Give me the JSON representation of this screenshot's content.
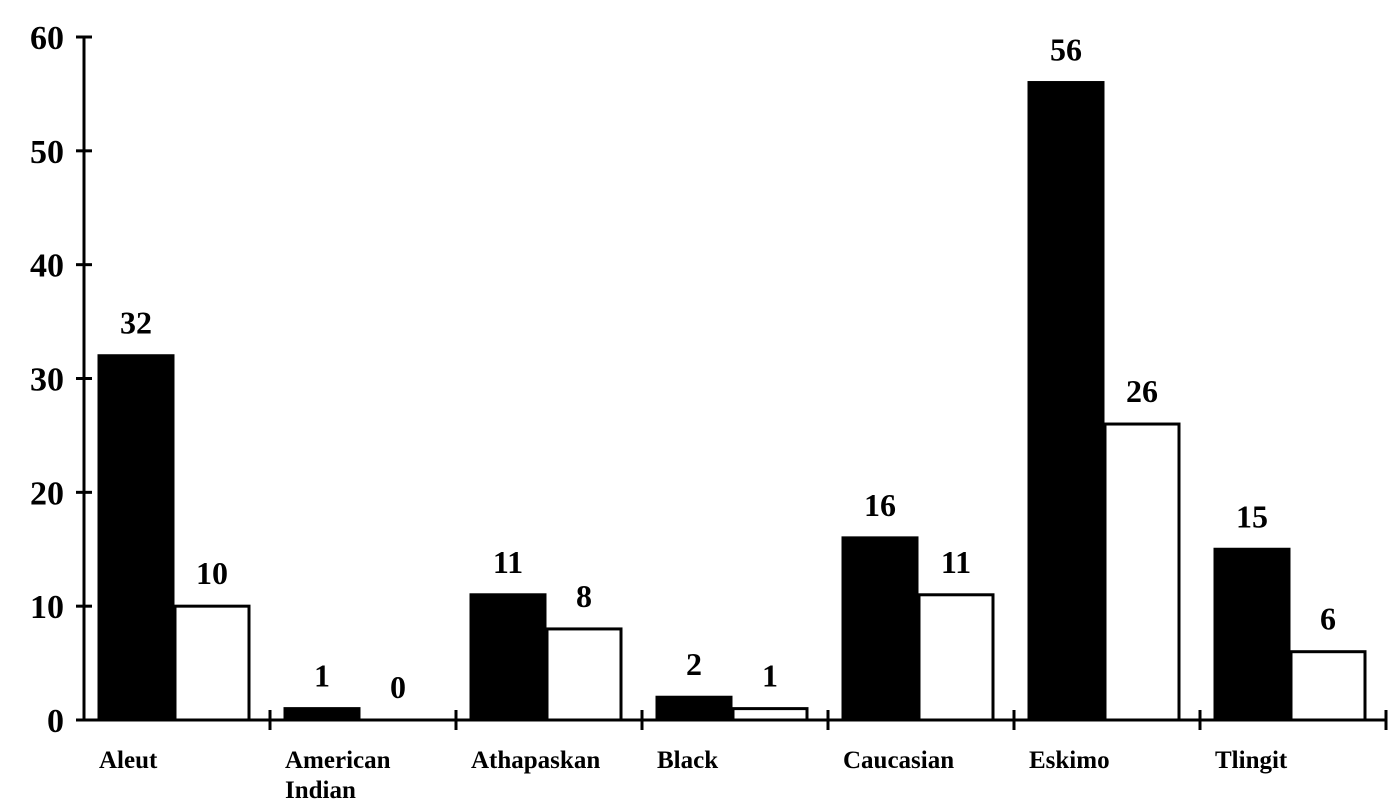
{
  "chart_data": {
    "type": "bar",
    "title": "",
    "xlabel": "",
    "ylabel": "",
    "ylim": [
      0,
      60
    ],
    "yticks": [
      0,
      10,
      20,
      30,
      40,
      50,
      60
    ],
    "grid": false,
    "legend": "none",
    "categories": [
      [
        "Aleut"
      ],
      [
        "American",
        "Indian"
      ],
      [
        "Athapaskan"
      ],
      [
        "Black"
      ],
      [
        "Caucasian"
      ],
      [
        "Eskimo"
      ],
      [
        "Tlingit"
      ]
    ],
    "series": [
      {
        "color": "#000000",
        "values": [
          32,
          1,
          11,
          2,
          16,
          56,
          15
        ]
      },
      {
        "color": "#ffffff",
        "values": [
          10,
          0,
          8,
          1,
          11,
          26,
          6
        ]
      }
    ]
  }
}
